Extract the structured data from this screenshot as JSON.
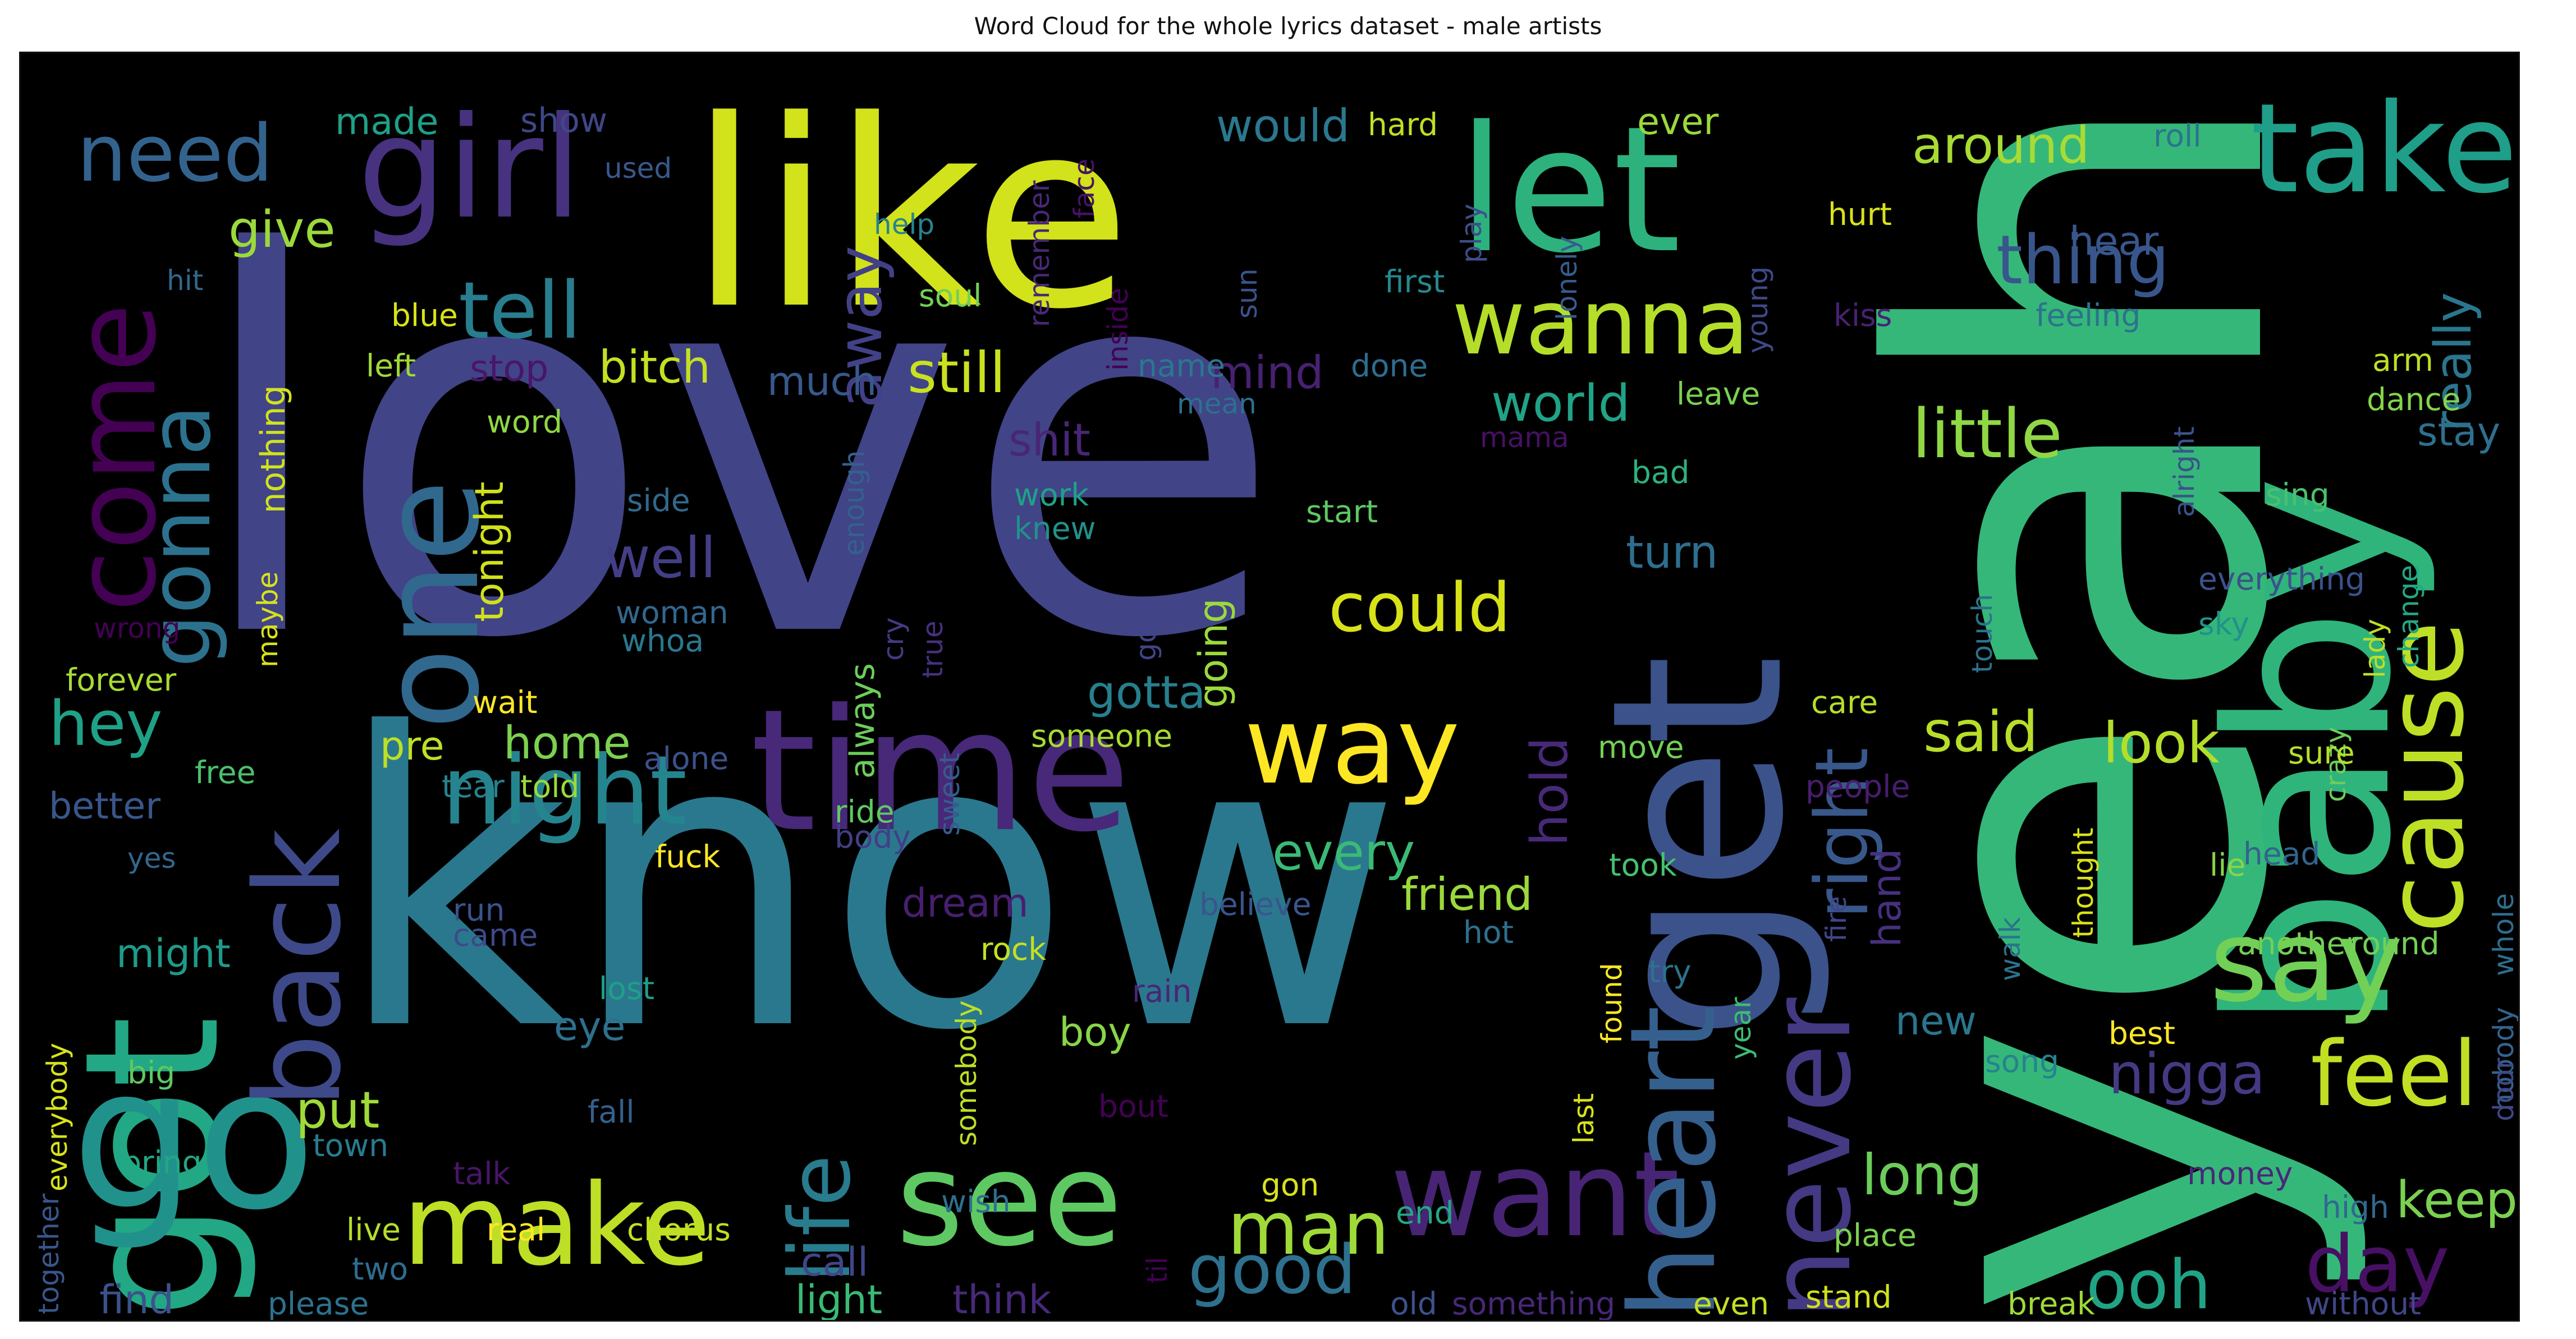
{
  "chart_data": {
    "type": "wordcloud",
    "title": "Word Cloud for the whole lyrics dataset - male artists",
    "background": "#000000",
    "colormap": "viridis",
    "words": [
      {
        "text": "love",
        "rel_size": 1.0,
        "color": "#414487"
      },
      {
        "text": "know",
        "rel_size": 0.98,
        "color": "#2a788e"
      },
      {
        "text": "yeah",
        "rel_size": 0.95,
        "color": "#35b779"
      },
      {
        "text": "like",
        "rel_size": 0.55,
        "color": "#d2e21b"
      },
      {
        "text": "got",
        "rel_size": 0.52,
        "color": "#22a884"
      },
      {
        "text": "go",
        "rel_size": 0.5,
        "color": "#21918c"
      },
      {
        "text": "get",
        "rel_size": 0.45,
        "color": "#3b528b"
      },
      {
        "text": "baby",
        "rel_size": 0.44,
        "color": "#2fb47c"
      },
      {
        "text": "time",
        "rel_size": 0.36,
        "color": "#482878"
      },
      {
        "text": "let",
        "rel_size": 0.34,
        "color": "#2db27d"
      },
      {
        "text": "one",
        "rel_size": 0.33,
        "color": "#31688e"
      },
      {
        "text": "girl",
        "rel_size": 0.3,
        "color": "#46327e"
      },
      {
        "text": "take",
        "rel_size": 0.26,
        "color": "#1f9e89"
      },
      {
        "text": "want",
        "rel_size": 0.26,
        "color": "#482475"
      },
      {
        "text": "see",
        "rel_size": 0.25,
        "color": "#5ec962"
      },
      {
        "text": "make",
        "rel_size": 0.24,
        "color": "#bddf26"
      },
      {
        "text": "back",
        "rel_size": 0.24,
        "color": "#3e4989"
      },
      {
        "text": "heart",
        "rel_size": 0.24,
        "color": "#355f8d"
      },
      {
        "text": "come",
        "rel_size": 0.24,
        "color": "#440154"
      },
      {
        "text": "never",
        "rel_size": 0.23,
        "color": "#443983"
      },
      {
        "text": "way",
        "rel_size": 0.22,
        "color": "#fde725"
      },
      {
        "text": "say",
        "rel_size": 0.22,
        "color": "#73d056"
      },
      {
        "text": "cause",
        "rel_size": 0.22,
        "color": "#bddf26"
      },
      {
        "text": "night",
        "rel_size": 0.2,
        "color": "#25858e"
      },
      {
        "text": "wanna",
        "rel_size": 0.19,
        "color": "#b5de2b"
      },
      {
        "text": "gonna",
        "rel_size": 0.18,
        "color": "#2c728e"
      },
      {
        "text": "life",
        "rel_size": 0.18,
        "color": "#287c8e"
      },
      {
        "text": "feel",
        "rel_size": 0.18,
        "color": "#c2df23"
      },
      {
        "text": "need",
        "rel_size": 0.17,
        "color": "#33638d"
      },
      {
        "text": "tell",
        "rel_size": 0.17,
        "color": "#287d8e"
      },
      {
        "text": "day",
        "rel_size": 0.16,
        "color": "#471063"
      },
      {
        "text": "right",
        "rel_size": 0.16,
        "color": "#38588c"
      },
      {
        "text": "thing",
        "rel_size": 0.15,
        "color": "#39568c"
      },
      {
        "text": "could",
        "rel_size": 0.15,
        "color": "#d8e219"
      },
      {
        "text": "good",
        "rel_size": 0.15,
        "color": "#2d718e"
      },
      {
        "text": "man",
        "rel_size": 0.15,
        "color": "#a0da39"
      },
      {
        "text": "ooh",
        "rel_size": 0.14,
        "color": "#20a486"
      },
      {
        "text": "hey",
        "rel_size": 0.13,
        "color": "#1fa187"
      },
      {
        "text": "little",
        "rel_size": 0.13,
        "color": "#8fd744"
      },
      {
        "text": "away",
        "rel_size": 0.13,
        "color": "#424086"
      },
      {
        "text": "well",
        "rel_size": 0.11,
        "color": "#433e85"
      },
      {
        "text": "still",
        "rel_size": 0.11,
        "color": "#cae11f"
      },
      {
        "text": "long",
        "rel_size": 0.11,
        "color": "#6ccd5a"
      },
      {
        "text": "nigga",
        "rel_size": 0.11,
        "color": "#443a83"
      },
      {
        "text": "said",
        "rel_size": 0.11,
        "color": "#b8de29"
      },
      {
        "text": "look",
        "rel_size": 0.11,
        "color": "#b5de2b"
      },
      {
        "text": "put",
        "rel_size": 0.1,
        "color": "#9fda3a"
      },
      {
        "text": "really",
        "rel_size": 0.1,
        "color": "#2a768e"
      },
      {
        "text": "keep",
        "rel_size": 0.1,
        "color": "#7ad151"
      },
      {
        "text": "hold",
        "rel_size": 0.1,
        "color": "#482979"
      },
      {
        "text": "world",
        "rel_size": 0.09,
        "color": "#20a386"
      },
      {
        "text": "every",
        "rel_size": 0.09,
        "color": "#3aba76"
      },
      {
        "text": "around",
        "rel_size": 0.09,
        "color": "#a8db34"
      },
      {
        "text": "give",
        "rel_size": 0.09,
        "color": "#9bd93c"
      },
      {
        "text": "mind",
        "rel_size": 0.09,
        "color": "#482173"
      },
      {
        "text": "friend",
        "rel_size": 0.09,
        "color": "#9bd93c"
      },
      {
        "text": "turn",
        "rel_size": 0.09,
        "color": "#2e6e8e"
      },
      {
        "text": "gotta",
        "rel_size": 0.09,
        "color": "#277f8e"
      },
      {
        "text": "stay",
        "rel_size": 0.08,
        "color": "#2e6f8e"
      },
      {
        "text": "home",
        "rel_size": 0.08,
        "color": "#7cd250"
      },
      {
        "text": "shit",
        "rel_size": 0.08,
        "color": "#482677"
      },
      {
        "text": "bitch",
        "rel_size": 0.08,
        "color": "#c5e021"
      },
      {
        "text": "would",
        "rel_size": 0.08,
        "color": "#2a788e"
      },
      {
        "text": "tonight",
        "rel_size": 0.08,
        "color": "#d0e11c"
      },
      {
        "text": "hand",
        "rel_size": 0.08,
        "color": "#46307e"
      },
      {
        "text": "going",
        "rel_size": 0.08,
        "color": "#9bd93c"
      },
      {
        "text": "much",
        "rel_size": 0.08,
        "color": "#38598c"
      },
      {
        "text": "eye",
        "rel_size": 0.08,
        "color": "#2d708e"
      },
      {
        "text": "boy",
        "rel_size": 0.08,
        "color": "#89d548"
      },
      {
        "text": "dream",
        "rel_size": 0.08,
        "color": "#481f70"
      },
      {
        "text": "might",
        "rel_size": 0.08,
        "color": "#1e9b8a"
      },
      {
        "text": "call",
        "rel_size": 0.08,
        "color": "#404688"
      },
      {
        "text": "light",
        "rel_size": 0.08,
        "color": "#3aba76"
      },
      {
        "text": "think",
        "rel_size": 0.08,
        "color": "#482979"
      },
      {
        "text": "find",
        "rel_size": 0.08,
        "color": "#3b528b"
      },
      {
        "text": "better",
        "rel_size": 0.08,
        "color": "#39568c"
      },
      {
        "text": "always",
        "rel_size": 0.07,
        "color": "#6ccd5a"
      },
      {
        "text": "stop",
        "rel_size": 0.07,
        "color": "#481668"
      },
      {
        "text": "made",
        "rel_size": 0.07,
        "color": "#1fa088"
      },
      {
        "text": "ever",
        "rel_size": 0.07,
        "color": "#9bd93c"
      },
      {
        "text": "new",
        "rel_size": 0.07,
        "color": "#2a768e"
      },
      {
        "text": "nothing",
        "rel_size": 0.07,
        "color": "#d2e21b"
      },
      {
        "text": "show",
        "rel_size": 0.06,
        "color": "#3f4788"
      },
      {
        "text": "hard",
        "rel_size": 0.06,
        "color": "#c2df23"
      },
      {
        "text": "pre",
        "rel_size": 0.07,
        "color": "#bddf26"
      },
      {
        "text": "hear",
        "rel_size": 0.06,
        "color": "#39568c"
      },
      {
        "text": "roll",
        "rel_size": 0.05,
        "color": "#2c738e"
      },
      {
        "text": "help",
        "rel_size": 0.05,
        "color": "#25848e"
      },
      {
        "text": "used",
        "rel_size": 0.05,
        "color": "#38598c"
      },
      {
        "text": "soul",
        "rel_size": 0.05,
        "color": "#73d056"
      },
      {
        "text": "remember",
        "rel_size": 0.05,
        "color": "#482878"
      },
      {
        "text": "face",
        "rel_size": 0.05,
        "color": "#471365"
      },
      {
        "text": "inside",
        "rel_size": 0.05,
        "color": "#440154"
      },
      {
        "text": "play",
        "rel_size": 0.05,
        "color": "#3c4f8a"
      },
      {
        "text": "lonely",
        "rel_size": 0.05,
        "color": "#365c8d"
      },
      {
        "text": "young",
        "rel_size": 0.05,
        "color": "#3f4889"
      },
      {
        "text": "hurt",
        "rel_size": 0.05,
        "color": "#d8e219"
      },
      {
        "text": "kiss",
        "rel_size": 0.05,
        "color": "#482173"
      },
      {
        "text": "feeling",
        "rel_size": 0.05,
        "color": "#2c728e"
      },
      {
        "text": "hit",
        "rel_size": 0.05,
        "color": "#31688e"
      },
      {
        "text": "blue",
        "rel_size": 0.05,
        "color": "#d8e219"
      },
      {
        "text": "sun",
        "rel_size": 0.05,
        "color": "#3b528b"
      },
      {
        "text": "first",
        "rel_size": 0.05,
        "color": "#23898e"
      },
      {
        "text": "left",
        "rel_size": 0.05,
        "color": "#a0da39"
      },
      {
        "text": "name",
        "rel_size": 0.05,
        "color": "#2a788e"
      },
      {
        "text": "done",
        "rel_size": 0.05,
        "color": "#2e6d8e"
      },
      {
        "text": "mean",
        "rel_size": 0.05,
        "color": "#2d708e"
      },
      {
        "text": "word",
        "rel_size": 0.05,
        "color": "#8fd744"
      },
      {
        "text": "leave",
        "rel_size": 0.05,
        "color": "#7ad151"
      },
      {
        "text": "arm",
        "rel_size": 0.05,
        "color": "#bddf26"
      },
      {
        "text": "dance",
        "rel_size": 0.05,
        "color": "#84d44b"
      },
      {
        "text": "alright",
        "rel_size": 0.05,
        "color": "#3b528b"
      },
      {
        "text": "mama",
        "rel_size": 0.05,
        "color": "#471063"
      },
      {
        "text": "bad",
        "rel_size": 0.05,
        "color": "#2db27d"
      },
      {
        "text": "side",
        "rel_size": 0.05,
        "color": "#31688e"
      },
      {
        "text": "work",
        "rel_size": 0.05,
        "color": "#1fa187"
      },
      {
        "text": "knew",
        "rel_size": 0.05,
        "color": "#21918c"
      },
      {
        "text": "enough",
        "rel_size": 0.05,
        "color": "#35608d"
      },
      {
        "text": "start",
        "rel_size": 0.05,
        "color": "#5ec962"
      },
      {
        "text": "sing",
        "rel_size": 0.05,
        "color": "#4ac16d"
      },
      {
        "text": "wrong",
        "rel_size": 0.05,
        "color": "#440154"
      },
      {
        "text": "maybe",
        "rel_size": 0.05,
        "color": "#d8e219"
      },
      {
        "text": "woman",
        "rel_size": 0.05,
        "color": "#31688e"
      },
      {
        "text": "whoa",
        "rel_size": 0.05,
        "color": "#2a788e"
      },
      {
        "text": "cry",
        "rel_size": 0.05,
        "color": "#443983"
      },
      {
        "text": "true",
        "rel_size": 0.05,
        "color": "#46307e"
      },
      {
        "text": "god",
        "rel_size": 0.05,
        "color": "#414487"
      },
      {
        "text": "touch",
        "rel_size": 0.05,
        "color": "#2c728e"
      },
      {
        "text": "everything",
        "rel_size": 0.05,
        "color": "#3b528b"
      },
      {
        "text": "lady",
        "rel_size": 0.05,
        "color": "#bddf26"
      },
      {
        "text": "change",
        "rel_size": 0.05,
        "color": "#22a884"
      },
      {
        "text": "sky",
        "rel_size": 0.05,
        "color": "#21918c"
      },
      {
        "text": "forever",
        "rel_size": 0.05,
        "color": "#a8db34"
      },
      {
        "text": "wait",
        "rel_size": 0.05,
        "color": "#fde725"
      },
      {
        "text": "someone",
        "rel_size": 0.05,
        "color": "#a8db34"
      },
      {
        "text": "alone",
        "rel_size": 0.05,
        "color": "#3b528b"
      },
      {
        "text": "sweet",
        "rel_size": 0.05,
        "color": "#365c8d"
      },
      {
        "text": "move",
        "rel_size": 0.05,
        "color": "#73d056"
      },
      {
        "text": "care",
        "rel_size": 0.05,
        "color": "#b5de2b"
      },
      {
        "text": "crazy",
        "rel_size": 0.05,
        "color": "#6ccd5a"
      },
      {
        "text": "sure",
        "rel_size": 0.05,
        "color": "#b5de2b"
      },
      {
        "text": "free",
        "rel_size": 0.05,
        "color": "#4ac16d"
      },
      {
        "text": "tear",
        "rel_size": 0.05,
        "color": "#26828e"
      },
      {
        "text": "told",
        "rel_size": 0.05,
        "color": "#9bd93c"
      },
      {
        "text": "people",
        "rel_size": 0.05,
        "color": "#481d6f"
      },
      {
        "text": "ride",
        "rel_size": 0.05,
        "color": "#5ec962"
      },
      {
        "text": "body",
        "rel_size": 0.05,
        "color": "#433e85"
      },
      {
        "text": "thought",
        "rel_size": 0.05,
        "color": "#d8e219"
      },
      {
        "text": "yes",
        "rel_size": 0.05,
        "color": "#31688e"
      },
      {
        "text": "took",
        "rel_size": 0.05,
        "color": "#46c06f"
      },
      {
        "text": "head",
        "rel_size": 0.05,
        "color": "#33638d"
      },
      {
        "text": "fuck",
        "rel_size": 0.05,
        "color": "#fde725"
      },
      {
        "text": "believe",
        "rel_size": 0.05,
        "color": "#39568c"
      },
      {
        "text": "fire",
        "rel_size": 0.05,
        "color": "#404688"
      },
      {
        "text": "lie",
        "rel_size": 0.05,
        "color": "#86d549"
      },
      {
        "text": "whole",
        "rel_size": 0.05,
        "color": "#2e6e8e"
      },
      {
        "text": "rock",
        "rel_size": 0.05,
        "color": "#c5e021"
      },
      {
        "text": "walk",
        "rel_size": 0.05,
        "color": "#2c728e"
      },
      {
        "text": "run",
        "rel_size": 0.05,
        "color": "#3b528b"
      },
      {
        "text": "came",
        "rel_size": 0.05,
        "color": "#3e4989"
      },
      {
        "text": "hot",
        "rel_size": 0.05,
        "color": "#2d708e"
      },
      {
        "text": "another",
        "rel_size": 0.05,
        "color": "#73d056"
      },
      {
        "text": "round",
        "rel_size": 0.05,
        "color": "#73d056"
      },
      {
        "text": "lost",
        "rel_size": 0.05,
        "color": "#1f9f88"
      },
      {
        "text": "try",
        "rel_size": 0.05,
        "color": "#2c728e"
      },
      {
        "text": "found",
        "rel_size": 0.05,
        "color": "#fde725"
      },
      {
        "text": "year",
        "rel_size": 0.05,
        "color": "#3dbc74"
      },
      {
        "text": "rain",
        "rel_size": 0.05,
        "color": "#482576"
      },
      {
        "text": "together",
        "rel_size": 0.05,
        "color": "#39568c"
      },
      {
        "text": "everybody",
        "rel_size": 0.05,
        "color": "#d8e219"
      },
      {
        "text": "big",
        "rel_size": 0.05,
        "color": "#5ec962"
      },
      {
        "text": "somebody",
        "rel_size": 0.05,
        "color": "#bddf26"
      },
      {
        "text": "best",
        "rel_size": 0.05,
        "color": "#fde725"
      },
      {
        "text": "nobody",
        "rel_size": 0.05,
        "color": "#33638d"
      },
      {
        "text": "door",
        "rel_size": 0.05,
        "color": "#3f4788"
      },
      {
        "text": "song",
        "rel_size": 0.05,
        "color": "#26828e"
      },
      {
        "text": "fall",
        "rel_size": 0.05,
        "color": "#35608d"
      },
      {
        "text": "bout",
        "rel_size": 0.05,
        "color": "#440154"
      },
      {
        "text": "last",
        "rel_size": 0.05,
        "color": "#d8e219"
      },
      {
        "text": "bring",
        "rel_size": 0.05,
        "color": "#22a884"
      },
      {
        "text": "town",
        "rel_size": 0.05,
        "color": "#287c8e"
      },
      {
        "text": "talk",
        "rel_size": 0.05,
        "color": "#481668"
      },
      {
        "text": "gon",
        "rel_size": 0.05,
        "color": "#d8e219"
      },
      {
        "text": "wish",
        "rel_size": 0.05,
        "color": "#2d708e"
      },
      {
        "text": "money",
        "rel_size": 0.05,
        "color": "#482878"
      },
      {
        "text": "til",
        "rel_size": 0.05,
        "color": "#440154"
      },
      {
        "text": "live",
        "rel_size": 0.05,
        "color": "#b5de2b"
      },
      {
        "text": "real",
        "rel_size": 0.05,
        "color": "#fde725"
      },
      {
        "text": "chorus",
        "rel_size": 0.05,
        "color": "#c2df23"
      },
      {
        "text": "end",
        "rel_size": 0.05,
        "color": "#22a884"
      },
      {
        "text": "high",
        "rel_size": 0.05,
        "color": "#31688e"
      },
      {
        "text": "place",
        "rel_size": 0.05,
        "color": "#7ad151"
      },
      {
        "text": "two",
        "rel_size": 0.05,
        "color": "#2e6d8e"
      },
      {
        "text": "please",
        "rel_size": 0.05,
        "color": "#2c728e"
      },
      {
        "text": "old",
        "rel_size": 0.05,
        "color": "#3b528b"
      },
      {
        "text": "something",
        "rel_size": 0.05,
        "color": "#482878"
      },
      {
        "text": "even",
        "rel_size": 0.05,
        "color": "#c5e021"
      },
      {
        "text": "stand",
        "rel_size": 0.05,
        "color": "#d0e11c"
      },
      {
        "text": "break",
        "rel_size": 0.05,
        "color": "#a0da39"
      },
      {
        "text": "without",
        "rel_size": 0.05,
        "color": "#404688"
      }
    ]
  }
}
